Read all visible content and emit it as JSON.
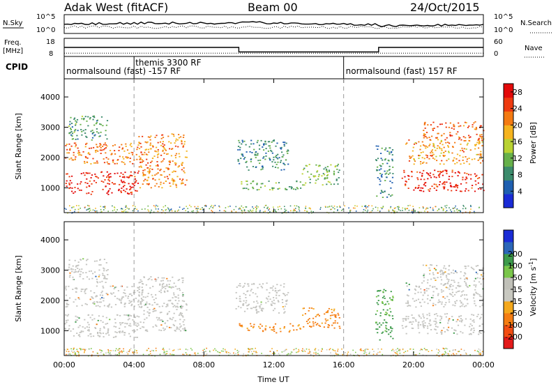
{
  "header": {
    "station": "Adak West (fitACF)",
    "beam": "Beam 00",
    "date": "24/Oct/2015"
  },
  "noise_panel": {
    "left_label": "N.Sky",
    "left_ticks": [
      "10^5",
      "10^0"
    ],
    "right_label": "N.Search",
    "right_ticks": [
      "10^5",
      "10^0"
    ]
  },
  "freq_panel": {
    "left_label_line1": "Freq.",
    "left_label_line2": "[MHz]",
    "left_ticks": [
      "18",
      "8"
    ],
    "right_label": "Nave",
    "right_ticks": [
      "60",
      "0"
    ]
  },
  "cpid_panel": {
    "label": "CPID",
    "entries": [
      {
        "text": "normalsound (fast) -157 RF"
      },
      {
        "text": "themis 3300 RF"
      },
      {
        "text": "normalsound (fast) 157 RF"
      }
    ]
  },
  "colors": {
    "power_scale": [
      "#1a2bd6",
      "#1f5fb0",
      "#3c8b6c",
      "#66b04a",
      "#b9d232",
      "#f5b31e",
      "#f47a12",
      "#ee3a0f",
      "#e30a0a"
    ],
    "velocity_scale": [
      "#e31a1a",
      "#f24d12",
      "#f57d12",
      "#f4a81c",
      "#c8c8c0",
      "#c0c0b8",
      "#7ac64a",
      "#3c9a4a",
      "#2b66b8",
      "#1a2bd6"
    ],
    "ground_scatter": "#c4c4c0"
  },
  "chart_data": [
    {
      "type": "heatmap",
      "name": "power",
      "xlabel": "",
      "ylabel": "Slant Range [km]",
      "xlim": [
        0,
        24
      ],
      "ylim": [
        180,
        4600
      ],
      "yticks": [
        1000,
        2000,
        3000,
        4000
      ],
      "colorbar": {
        "label": "Power [dB]",
        "ticks": [
          "4",
          "8",
          "12",
          "16",
          "20",
          "24",
          "28"
        ],
        "range": [
          0,
          30
        ]
      },
      "regions": [
        {
          "t_start": 0.0,
          "t_end": 4.2,
          "range_min": 800,
          "range_max": 1550,
          "value": 27
        },
        {
          "t_start": 0.0,
          "t_end": 4.5,
          "range_min": 1800,
          "range_max": 2500,
          "value": 22
        },
        {
          "t_start": 0.2,
          "t_end": 2.5,
          "range_min": 2600,
          "range_max": 3400,
          "value": 10
        },
        {
          "t_start": 4.2,
          "t_end": 7.0,
          "range_min": 1000,
          "range_max": 2800,
          "value": 21
        },
        {
          "t_start": 9.8,
          "t_end": 12.8,
          "range_min": 1600,
          "range_max": 2600,
          "value": 8
        },
        {
          "t_start": 10.0,
          "t_end": 13.5,
          "range_min": 950,
          "range_max": 1250,
          "value": 11
        },
        {
          "t_start": 13.6,
          "t_end": 15.8,
          "range_min": 1100,
          "range_max": 1800,
          "value": 12
        },
        {
          "t_start": 17.8,
          "t_end": 18.8,
          "range_min": 700,
          "range_max": 2400,
          "value": 8
        },
        {
          "t_start": 19.3,
          "t_end": 24.0,
          "range_min": 900,
          "range_max": 1600,
          "value": 27
        },
        {
          "t_start": 19.5,
          "t_end": 24.0,
          "range_min": 1800,
          "range_max": 2600,
          "value": 20
        },
        {
          "t_start": 20.5,
          "t_end": 24.0,
          "range_min": 2600,
          "range_max": 3200,
          "value": 23
        }
      ]
    },
    {
      "type": "heatmap",
      "name": "velocity",
      "xlabel": "Time UT",
      "ylabel": "Slant Range [km]",
      "xlim": [
        0,
        24
      ],
      "ylim": [
        180,
        4600
      ],
      "yticks": [
        1000,
        2000,
        3000,
        4000
      ],
      "xticks": [
        "00:00",
        "04:00",
        "08:00",
        "12:00",
        "16:00",
        "20:00",
        "00:00"
      ],
      "colorbar": {
        "label": "Velocity [m s^-1]",
        "ticks": [
          "-200",
          "-100",
          "-50",
          "-15",
          "15",
          "50",
          "100",
          "200"
        ],
        "range": [
          -250,
          250
        ]
      },
      "regions": [
        {
          "t_start": 0.0,
          "t_end": 4.2,
          "range_min": 800,
          "range_max": 1550,
          "value": 0
        },
        {
          "t_start": 0.0,
          "t_end": 4.5,
          "range_min": 1800,
          "range_max": 2500,
          "value": 0
        },
        {
          "t_start": 0.2,
          "t_end": 2.5,
          "range_min": 2600,
          "range_max": 3400,
          "value": 0
        },
        {
          "t_start": 4.2,
          "t_end": 7.0,
          "range_min": 1000,
          "range_max": 2800,
          "value": 0
        },
        {
          "t_start": 9.8,
          "t_end": 12.8,
          "range_min": 1600,
          "range_max": 2600,
          "value": 5
        },
        {
          "t_start": 10.0,
          "t_end": 13.5,
          "range_min": 950,
          "range_max": 1250,
          "value": -60
        },
        {
          "t_start": 13.6,
          "t_end": 15.8,
          "range_min": 1100,
          "range_max": 1800,
          "value": -60
        },
        {
          "t_start": 17.8,
          "t_end": 18.8,
          "range_min": 700,
          "range_max": 2400,
          "value": 60
        },
        {
          "t_start": 19.3,
          "t_end": 24.0,
          "range_min": 900,
          "range_max": 1600,
          "value": 0
        },
        {
          "t_start": 19.5,
          "t_end": 24.0,
          "range_min": 1800,
          "range_max": 2600,
          "value": 0
        },
        {
          "t_start": 20.5,
          "t_end": 24.0,
          "range_min": 2600,
          "range_max": 3200,
          "value": 0
        }
      ]
    }
  ],
  "freq_series": {
    "frequency_MHz": [
      {
        "t_start": 0.0,
        "t_end": 10.0,
        "value": 13
      },
      {
        "t_start": 10.0,
        "t_end": 18.0,
        "value": 10.5
      },
      {
        "t_start": 18.0,
        "t_end": 24.0,
        "value": 13
      }
    ],
    "nave": 11
  },
  "cpid_times": [
    {
      "t": 0.0,
      "label_index": 0
    },
    {
      "t": 4.0,
      "label_index": 1
    },
    {
      "t": 16.0,
      "label_index": 2
    }
  ]
}
